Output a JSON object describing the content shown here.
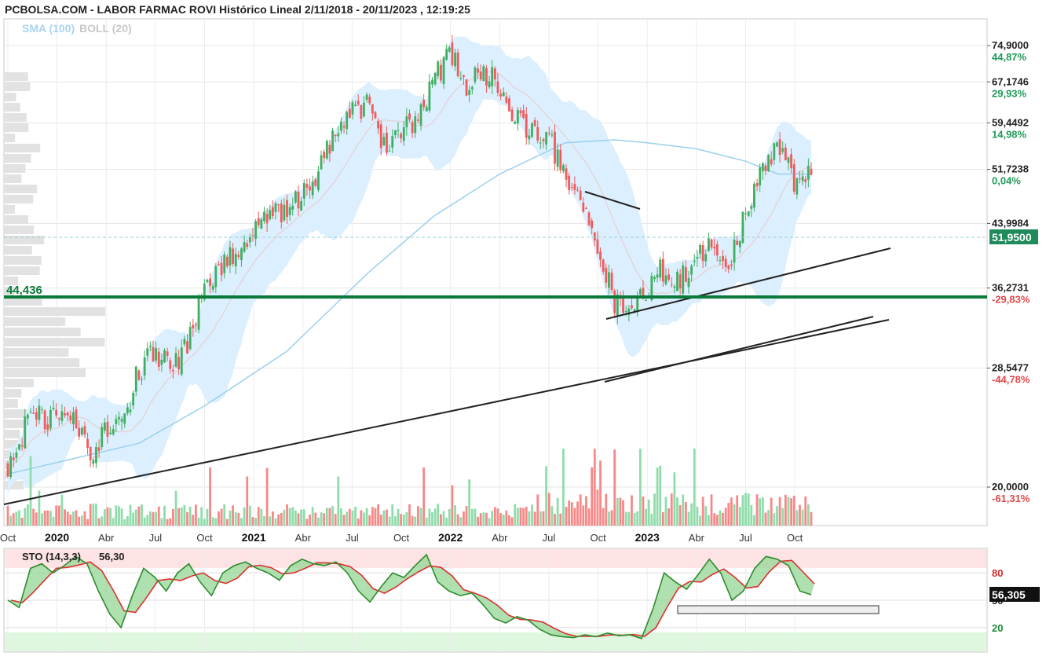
{
  "header": {
    "title": "PCBOLSA.COM - LABOR FARMAC ROVI Histórico Lineal 2/11/2018 - 20/11/2023 , 12:19:25",
    "sma_label": "SMA (100)",
    "boll_label": "BOLL (20)"
  },
  "colors": {
    "up": "#3fae5f",
    "down": "#f05a5a",
    "up_volume": "#8fdcaa",
    "down_volume": "#f78888",
    "bollinger_fill": "#dcefff",
    "sma": "#9ad0ee",
    "support": "#0a7a3a",
    "stoch_k": "#2e8b2e",
    "stoch_d": "#e03030"
  },
  "chart_data": [
    {
      "type": "candlestick",
      "title": "LABOR FARMAC ROVI Histórico Lineal 2/11/2018 - 20/11/2023",
      "y_scale": "log",
      "ylim": [
        19.2,
        79.5
      ],
      "y_ticks": [
        {
          "value": "74,9000",
          "pct": "44,87%"
        },
        {
          "value": "67,1746",
          "pct": "29,93%"
        },
        {
          "value": "59,4492",
          "pct": "14,98%"
        },
        {
          "value": "51,7238",
          "pct": "0,04%"
        },
        {
          "value": "43,9984",
          "pct": "-14,89%"
        },
        {
          "value": "36,2731",
          "pct": "-29,83%"
        },
        {
          "value": "28,5477",
          "pct": "-44,78%"
        },
        {
          "value": "20,0000",
          "pct": "-61,31%"
        }
      ],
      "last_price": "51,9500",
      "horizontal_line": {
        "label": "44,436",
        "value": 44.436
      },
      "x_ticks": [
        "Oct",
        "2020",
        "Abr",
        "Jul",
        "Oct",
        "2021",
        "Abr",
        "Jul",
        "Oct",
        "2022",
        "Abr",
        "Jul",
        "Oct",
        "2023",
        "Abr",
        "Jul",
        "Oct"
      ],
      "x_range": [
        "2019-10",
        "2023-11"
      ],
      "close_path": [
        [
          "2019-10",
          21.5
        ],
        [
          "2019-11",
          23.8
        ],
        [
          "2019-12",
          24.6
        ],
        [
          "2020-01",
          24.4
        ],
        [
          "2020-02",
          25.0
        ],
        [
          "2020-03",
          21.6
        ],
        [
          "2020-04",
          24.2
        ],
        [
          "2020-05",
          23.8
        ],
        [
          "2020-06",
          28.5
        ],
        [
          "2020-07",
          29.8
        ],
        [
          "2020-08",
          28.6
        ],
        [
          "2020-09",
          31.0
        ],
        [
          "2020-10",
          35.5
        ],
        [
          "2020-11",
          38.5
        ],
        [
          "2020-12",
          40.5
        ],
        [
          "2021-01",
          42.6
        ],
        [
          "2021-02",
          45.3
        ],
        [
          "2021-03",
          46.0
        ],
        [
          "2021-04",
          47.8
        ],
        [
          "2021-05",
          52.0
        ],
        [
          "2021-06",
          58.0
        ],
        [
          "2021-07",
          62.0
        ],
        [
          "2021-08",
          63.0
        ],
        [
          "2021-09",
          55.0
        ],
        [
          "2021-10",
          58.0
        ],
        [
          "2021-11",
          60.0
        ],
        [
          "2021-12",
          68.0
        ],
        [
          "2022-01",
          73.0
        ],
        [
          "2022-02",
          66.0
        ],
        [
          "2022-03",
          70.0
        ],
        [
          "2022-04",
          66.0
        ],
        [
          "2022-05",
          60.0
        ],
        [
          "2022-06",
          58.0
        ],
        [
          "2022-07",
          57.0
        ],
        [
          "2022-08",
          50.0
        ],
        [
          "2022-09",
          47.0
        ],
        [
          "2022-10",
          41.5
        ],
        [
          "2022-11",
          35.0
        ],
        [
          "2022-12",
          34.2
        ],
        [
          "2023-01",
          36.5
        ],
        [
          "2023-02",
          38.5
        ],
        [
          "2023-03",
          37.5
        ],
        [
          "2023-04",
          40.0
        ],
        [
          "2023-05",
          41.5
        ],
        [
          "2023-06",
          39.5
        ],
        [
          "2023-07",
          45.0
        ],
        [
          "2023-08",
          52.0
        ],
        [
          "2023-09",
          55.0
        ],
        [
          "2023-10",
          50.0
        ],
        [
          "2023-11",
          51.95
        ]
      ],
      "sma_100_path": [
        [
          "2019-10",
          20.8
        ],
        [
          "2020-06",
          22.8
        ],
        [
          "2020-10",
          25.5
        ],
        [
          "2021-03",
          30.0
        ],
        [
          "2021-08",
          38.0
        ],
        [
          "2021-12",
          45.0
        ],
        [
          "2022-04",
          51.0
        ],
        [
          "2022-08",
          56.0
        ],
        [
          "2022-11",
          56.5
        ],
        [
          "2023-01",
          56.0
        ],
        [
          "2023-04",
          55.0
        ],
        [
          "2023-07",
          53.0
        ],
        [
          "2023-09",
          51.0
        ],
        [
          "2023-11",
          51.0
        ]
      ]
    },
    {
      "type": "line",
      "title": "STO (14,3,3)",
      "label": "STO (14,3,3)",
      "label_value": "56,30",
      "last_value": "56,305",
      "ylim": [
        0,
        100
      ],
      "y_ticks": [
        "80",
        "50",
        "20"
      ],
      "series": [
        {
          "name": "%K",
          "values": [
            50,
            42,
            85,
            90,
            80,
            88,
            98,
            90,
            60,
            35,
            20,
            55,
            85,
            75,
            60,
            80,
            90,
            70,
            55,
            80,
            88,
            92,
            85,
            80,
            72,
            88,
            95,
            90,
            88,
            92,
            80,
            60,
            48,
            65,
            80,
            75,
            88,
            100,
            70,
            60,
            55,
            58,
            45,
            30,
            25,
            32,
            28,
            18,
            12,
            10,
            9,
            12,
            10,
            14,
            11,
            12,
            8,
            40,
            80,
            70,
            62,
            78,
            95,
            80,
            50,
            60,
            85,
            98,
            95,
            88,
            60,
            56
          ]
        }
      ]
    }
  ]
}
